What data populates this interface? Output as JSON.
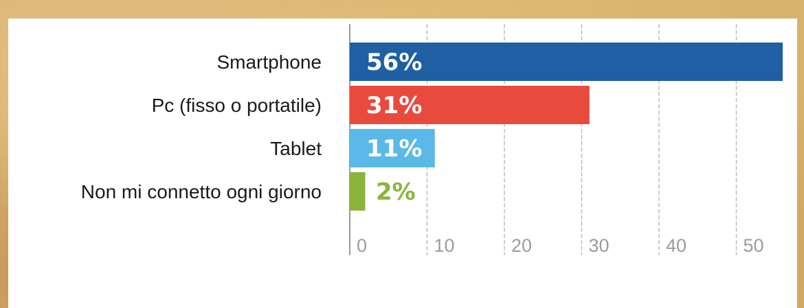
{
  "chart_data": {
    "type": "bar",
    "orientation": "horizontal",
    "title": "",
    "xlabel": "",
    "ylabel": "",
    "categories": [
      "Smartphone",
      "Pc (fisso o portatile)",
      "Tablet",
      "Non mi connetto ogni giorno"
    ],
    "values": [
      56,
      31,
      11,
      2
    ],
    "data_labels": [
      "56%",
      "31%",
      "11%",
      "2%"
    ],
    "colors": [
      "#1f5fa3",
      "#e94a3e",
      "#5ab9e8",
      "#8ab53a"
    ],
    "label_colors": [
      "#ffffff",
      "#ffffff",
      "#ffffff",
      "#8ab53a"
    ],
    "xlim": [
      0,
      55
    ],
    "x_ticks": [
      0,
      10,
      20,
      30,
      40,
      50
    ],
    "grid": true
  }
}
